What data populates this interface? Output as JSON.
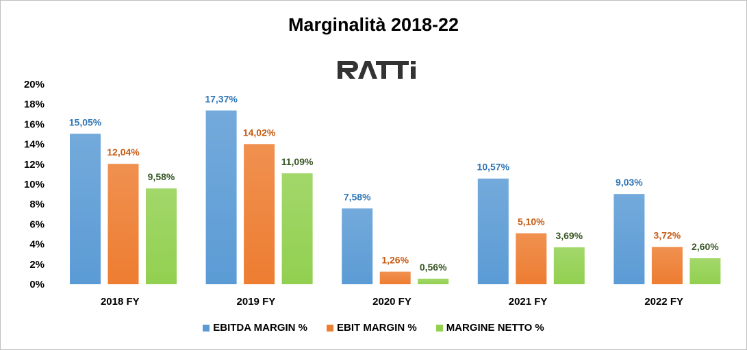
{
  "chart_data": {
    "type": "bar",
    "title": "Marginalità 2018-22",
    "logo_text": "RATTI",
    "categories": [
      "2018 FY",
      "2019 FY",
      "2020 FY",
      "2021 FY",
      "2022 FY"
    ],
    "series": [
      {
        "name": "EBITDA MARGIN %",
        "values": [
          15.05,
          17.37,
          7.58,
          10.57,
          9.03
        ],
        "labels": [
          "15,05%",
          "17,37%",
          "7,58%",
          "10,57%",
          "9,03%"
        ],
        "color": "#5b9bd5",
        "label_color": "#2e75b6"
      },
      {
        "name": "EBIT MARGIN %",
        "values": [
          12.04,
          14.02,
          1.26,
          5.1,
          3.72
        ],
        "labels": [
          "12,04%",
          "14,02%",
          "1,26%",
          "5,10%",
          "3,72%"
        ],
        "color": "#ed7d31",
        "label_color": "#c55a11"
      },
      {
        "name": "MARGINE NETTO %",
        "values": [
          9.58,
          11.09,
          0.56,
          3.69,
          2.6
        ],
        "labels": [
          "9,58%",
          "11,09%",
          "0,56%",
          "3,69%",
          "2,60%"
        ],
        "color": "#92d050",
        "label_color": "#375623"
      }
    ],
    "yticks": [
      "0%",
      "2%",
      "4%",
      "6%",
      "8%",
      "10%",
      "12%",
      "14%",
      "16%",
      "18%",
      "20%"
    ],
    "ylim": [
      0,
      20
    ],
    "grid": false,
    "legend": "bottom"
  }
}
